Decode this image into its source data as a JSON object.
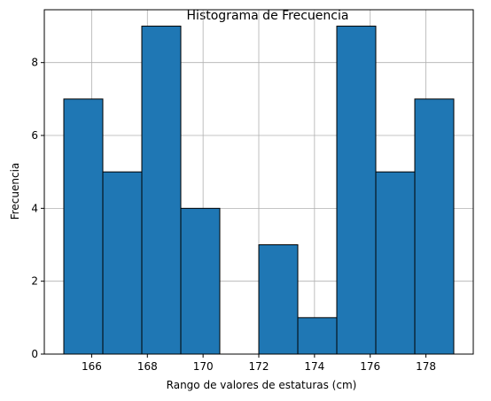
{
  "chart_data": {
    "type": "bar",
    "title": "Histograma de Frecuencia",
    "xlabel": "Rango de valores de estaturas (cm)",
    "ylabel": "Frecuencia",
    "bin_edges": [
      165.0,
      166.4,
      167.8,
      169.2,
      170.6,
      172.0,
      173.4,
      174.8,
      176.2,
      177.6,
      179.0
    ],
    "values": [
      7,
      5,
      9,
      4,
      0,
      3,
      1,
      9,
      5,
      7
    ],
    "xlim": [
      164.3,
      179.7
    ],
    "ylim": [
      0,
      9.45
    ],
    "xticks": [
      166,
      168,
      170,
      172,
      174,
      176,
      178
    ],
    "yticks": [
      0,
      2,
      4,
      6,
      8
    ],
    "grid": true,
    "bar_color": "#1f77b4",
    "edge_color": "#000000",
    "grid_color": "#b0b0b0"
  }
}
